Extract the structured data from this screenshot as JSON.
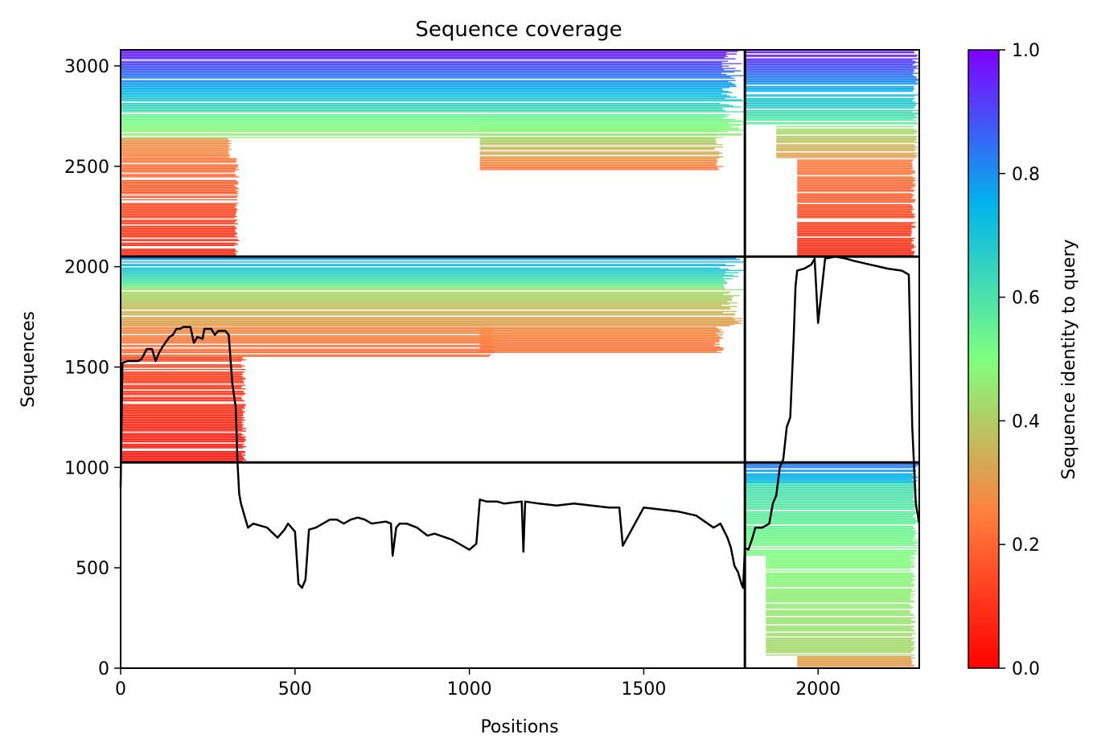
{
  "chart_data": {
    "type": "heatmap",
    "title": "Sequence coverage",
    "xlabel": "Positions",
    "ylabel": "Sequences",
    "xlim": [
      0,
      2290
    ],
    "ylim": [
      0,
      3080
    ],
    "xticks": [
      "0",
      "500",
      "1000",
      "1500",
      "2000"
    ],
    "xtick_values": [
      0,
      500,
      1000,
      1500,
      2000
    ],
    "yticks": [
      "0",
      "500",
      "1000",
      "1500",
      "2000",
      "2500",
      "3000"
    ],
    "ytick_values": [
      0,
      500,
      1000,
      1500,
      2000,
      2500,
      3000
    ],
    "colorbar": {
      "label": "Sequence identity to query",
      "range": [
        0,
        1
      ],
      "ticks": [
        "0.0",
        "0.2",
        "0.4",
        "0.6",
        "0.8",
        "1.0"
      ],
      "tick_values": [
        0,
        0.2,
        0.4,
        0.6,
        0.8,
        1.0
      ],
      "colormap": "rainbow_r",
      "colors": [
        "#ff0000",
        "#ff7f3f",
        "#80ff80",
        "#00b4eb",
        "#8000ff"
      ]
    },
    "dividers": {
      "vertical_x": 1790,
      "horizontal_y": [
        1025,
        2050
      ]
    },
    "blocks": [
      {
        "x": [
          0,
          1790
        ],
        "y": [
          2050,
          3080
        ],
        "bands": [
          {
            "y": [
              3080,
              2960
            ],
            "x": [
              0,
              1790
            ],
            "identity_top": 0.98,
            "identity_bottom": 0.85
          },
          {
            "y": [
              2960,
              2760
            ],
            "x": [
              0,
              1790
            ],
            "identity_top": 0.85,
            "identity_bottom": 0.6
          },
          {
            "y": [
              2760,
              2640
            ],
            "x": [
              0,
              1790
            ],
            "identity_top": 0.55,
            "identity_bottom": 0.45
          },
          {
            "y": [
              2640,
              2540
            ],
            "x": [
              0,
              320
            ],
            "identity_top": 0.3,
            "identity_bottom": 0.25
          },
          {
            "y": [
              2540,
              2050
            ],
            "x": [
              0,
              340
            ],
            "identity_top": 0.23,
            "identity_bottom": 0.08
          },
          {
            "y": [
              2700,
              2480
            ],
            "x": [
              1030,
              1730
            ],
            "identity_top": 0.5,
            "identity_bottom": 0.22
          }
        ]
      },
      {
        "x": [
          0,
          1790
        ],
        "y": [
          1025,
          2050
        ],
        "bands": [
          {
            "y": [
              2050,
              1900
            ],
            "x": [
              0,
              1790
            ],
            "identity_top": 0.8,
            "identity_bottom": 0.55
          },
          {
            "y": [
              1900,
              1700
            ],
            "x": [
              0,
              1790
            ],
            "identity_top": 0.45,
            "identity_bottom": 0.3
          },
          {
            "y": [
              1700,
              1550
            ],
            "x": [
              0,
              1100
            ],
            "identity_top": 0.28,
            "identity_bottom": 0.2
          },
          {
            "y": [
              1700,
              1570
            ],
            "x": [
              1030,
              1730
            ],
            "identity_top": 0.28,
            "identity_bottom": 0.22
          },
          {
            "y": [
              1550,
              1025
            ],
            "x": [
              0,
              360
            ],
            "identity_top": 0.15,
            "identity_bottom": 0.03
          }
        ]
      },
      {
        "x": [
          1790,
          2290
        ],
        "y": [
          2050,
          3080
        ],
        "bands": [
          {
            "y": [
              3080,
              2960
            ],
            "x": [
              1790,
              2290
            ],
            "identity_top": 0.98,
            "identity_bottom": 0.85
          },
          {
            "y": [
              2960,
              2700
            ],
            "x": [
              1790,
              2290
            ],
            "identity_top": 0.85,
            "identity_bottom": 0.55
          },
          {
            "y": [
              2700,
              2540
            ],
            "x": [
              1880,
              2290
            ],
            "identity_top": 0.45,
            "identity_bottom": 0.3
          },
          {
            "y": [
              2540,
              2050
            ],
            "x": [
              1940,
              2280
            ],
            "identity_top": 0.25,
            "identity_bottom": 0.08
          }
        ]
      },
      {
        "x": [
          1790,
          2290
        ],
        "y": [
          0,
          1025
        ],
        "bands": [
          {
            "y": [
              1025,
              920
            ],
            "x": [
              1790,
              2290
            ],
            "identity_top": 0.85,
            "identity_bottom": 0.7
          },
          {
            "y": [
              920,
              560
            ],
            "x": [
              1790,
              2290
            ],
            "identity_top": 0.62,
            "identity_bottom": 0.5
          },
          {
            "y": [
              560,
              60
            ],
            "x": [
              1850,
              2280
            ],
            "identity_top": 0.5,
            "identity_bottom": 0.42
          },
          {
            "y": [
              60,
              0
            ],
            "x": [
              1940,
              2280
            ],
            "identity_top": 0.32,
            "identity_bottom": 0.3
          }
        ]
      }
    ],
    "coverage_line": {
      "color": "#000000",
      "x": [
        0,
        5,
        20,
        50,
        60,
        75,
        90,
        100,
        110,
        120,
        140,
        150,
        160,
        170,
        180,
        200,
        210,
        220,
        235,
        240,
        260,
        270,
        280,
        300,
        310,
        320,
        330,
        335,
        340,
        345,
        350,
        355,
        365,
        380,
        400,
        420,
        450,
        470,
        480,
        500,
        510,
        520,
        530,
        540,
        560,
        580,
        600,
        620,
        640,
        660,
        680,
        700,
        720,
        760,
        775,
        780,
        790,
        800,
        820,
        850,
        880,
        900,
        950,
        980,
        1000,
        1020,
        1030,
        1050,
        1080,
        1100,
        1150,
        1155,
        1160,
        1200,
        1250,
        1300,
        1350,
        1400,
        1430,
        1440,
        1500,
        1550,
        1600,
        1650,
        1700,
        1720,
        1740,
        1750,
        1760,
        1770,
        1780,
        1785,
        1790,
        1800,
        1810,
        1820,
        1840,
        1860,
        1870,
        1880,
        1890,
        1900,
        1910,
        1920,
        1930,
        1935,
        1940,
        1960,
        1980,
        1990,
        2000,
        2020,
        2050,
        2080,
        2100,
        2150,
        2200,
        2240,
        2260,
        2270,
        2280,
        2290
      ],
      "y": [
        900,
        1520,
        1530,
        1530,
        1540,
        1590,
        1590,
        1530,
        1570,
        1600,
        1650,
        1660,
        1690,
        1690,
        1700,
        1700,
        1620,
        1650,
        1640,
        1690,
        1690,
        1660,
        1680,
        1680,
        1660,
        1420,
        1300,
        1025,
        870,
        820,
        790,
        760,
        700,
        720,
        710,
        700,
        650,
        690,
        720,
        680,
        420,
        400,
        440,
        690,
        700,
        720,
        740,
        740,
        720,
        740,
        750,
        740,
        720,
        730,
        720,
        560,
        700,
        720,
        720,
        700,
        660,
        670,
        640,
        610,
        590,
        620,
        840,
        830,
        830,
        820,
        830,
        580,
        830,
        820,
        810,
        820,
        810,
        800,
        800,
        610,
        800,
        790,
        780,
        760,
        700,
        720,
        650,
        600,
        510,
        480,
        420,
        400,
        600,
        590,
        640,
        700,
        700,
        720,
        820,
        860,
        1000,
        1040,
        1200,
        1250,
        1650,
        1900,
        1980,
        1990,
        2010,
        2040,
        1720,
        2040,
        2050,
        2040,
        2030,
        2010,
        1990,
        1980,
        1960,
        1200,
        820,
        720
      ]
    }
  }
}
